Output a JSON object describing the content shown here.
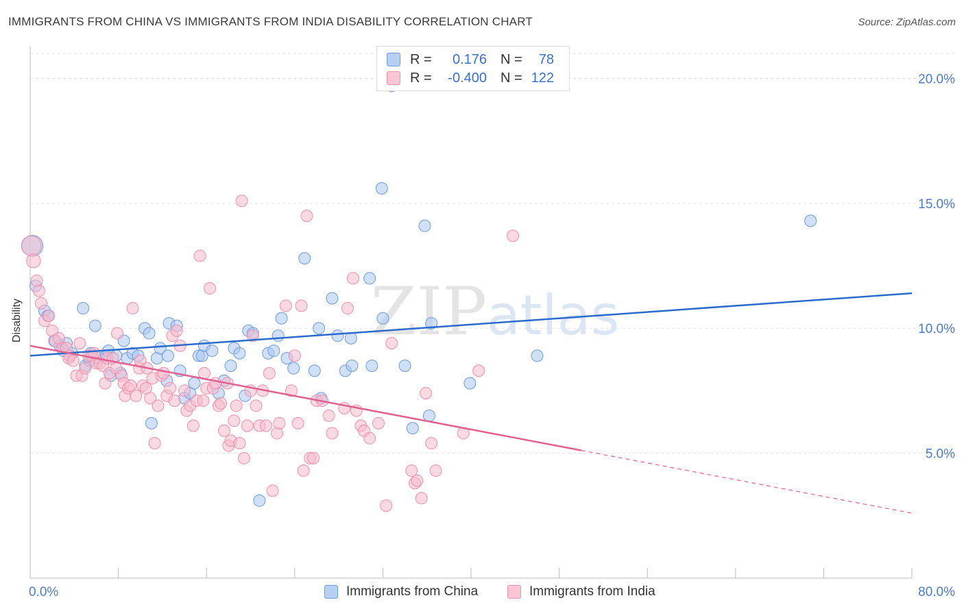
{
  "title": "IMMIGRANTS FROM CHINA VS IMMIGRANTS FROM INDIA DISABILITY CORRELATION CHART",
  "source": "Source: ZipAtlas.com",
  "watermark": "ZIPatlas",
  "legend": {
    "china": {
      "r_label": "R =",
      "r_value": "0.176",
      "n_label": "N =",
      "n_value": "78"
    },
    "india": {
      "r_label": "R =",
      "r_value": "-0.400",
      "n_label": "N =",
      "n_value": "122"
    }
  },
  "colors": {
    "china_fill": "#a7c6f0",
    "china_stroke": "#6d9be0",
    "china_line": "#2a6ccc",
    "india_fill": "#f7b9cc",
    "india_stroke": "#ee8fae",
    "india_line": "#e0608f",
    "tick_label": "#4a7bd0",
    "grid": "#e3e3e3"
  },
  "chart_data": {
    "type": "scatter",
    "xlabel": "",
    "ylabel": "Disability",
    "xlim": [
      0,
      80
    ],
    "ylim": [
      0,
      21
    ],
    "x_tick_labels": [
      "0.0%",
      "80.0%"
    ],
    "y_ticks": [
      5,
      10,
      15,
      20
    ],
    "y_tick_labels": [
      "5.0%",
      "10.0%",
      "15.0%",
      "20.0%"
    ],
    "grid": true,
    "series": [
      {
        "name": "Immigrants from China",
        "trend": {
          "x": [
            0,
            80
          ],
          "y": [
            8.9,
            11.4
          ],
          "dashed_from": null
        },
        "points": [
          [
            0.2,
            13.3,
            1.8
          ],
          [
            0.5,
            11.7,
            1
          ],
          [
            1.3,
            10.7,
            1
          ],
          [
            1.6,
            10.5,
            1
          ],
          [
            2.2,
            9.5,
            1
          ],
          [
            2.7,
            9.3,
            1
          ],
          [
            3.0,
            9.1,
            1
          ],
          [
            3.3,
            9.4,
            1
          ],
          [
            3.8,
            9.0,
            1
          ],
          [
            4.8,
            10.8,
            1
          ],
          [
            5.0,
            8.5,
            1
          ],
          [
            5.4,
            8.7,
            1
          ],
          [
            5.5,
            9.0,
            1
          ],
          [
            5.9,
            10.1,
            1
          ],
          [
            6.2,
            8.8,
            1
          ],
          [
            6.9,
            8.9,
            1
          ],
          [
            7.1,
            9.1,
            1
          ],
          [
            7.3,
            8.1,
            1
          ],
          [
            7.8,
            8.9,
            1
          ],
          [
            8.2,
            8.2,
            1
          ],
          [
            8.5,
            9.5,
            1
          ],
          [
            8.8,
            8.8,
            1
          ],
          [
            9.3,
            9.0,
            1
          ],
          [
            9.8,
            8.9,
            1
          ],
          [
            10.4,
            10.0,
            1
          ],
          [
            10.8,
            9.8,
            1
          ],
          [
            11.0,
            6.2,
            1
          ],
          [
            11.5,
            8.8,
            1
          ],
          [
            11.8,
            9.2,
            1
          ],
          [
            12.5,
            8.9,
            1
          ],
          [
            12.4,
            7.9,
            1
          ],
          [
            12.6,
            10.2,
            1
          ],
          [
            13.3,
            10.1,
            1
          ],
          [
            13.6,
            8.3,
            1
          ],
          [
            14.0,
            7.2,
            1
          ],
          [
            14.5,
            7.4,
            1
          ],
          [
            14.9,
            7.8,
            1
          ],
          [
            15.3,
            8.9,
            1
          ],
          [
            15.6,
            8.9,
            1
          ],
          [
            15.8,
            9.3,
            1
          ],
          [
            16.5,
            9.1,
            1
          ],
          [
            17.1,
            7.4,
            1
          ],
          [
            17.6,
            7.9,
            1
          ],
          [
            18.2,
            8.5,
            1
          ],
          [
            18.5,
            9.2,
            1
          ],
          [
            19.0,
            9.0,
            1
          ],
          [
            19.5,
            7.3,
            1
          ],
          [
            19.8,
            9.9,
            1
          ],
          [
            20.2,
            9.8,
            1
          ],
          [
            20.8,
            3.1,
            1
          ],
          [
            21.6,
            9.0,
            1
          ],
          [
            22.1,
            9.1,
            1
          ],
          [
            22.5,
            9.7,
            1
          ],
          [
            22.8,
            10.4,
            1
          ],
          [
            23.3,
            8.8,
            1
          ],
          [
            23.9,
            8.4,
            1
          ],
          [
            24.9,
            12.8,
            1
          ],
          [
            25.8,
            8.3,
            1
          ],
          [
            26.2,
            10.0,
            1
          ],
          [
            26.4,
            7.2,
            1
          ],
          [
            27.4,
            11.2,
            1
          ],
          [
            27.9,
            9.7,
            1
          ],
          [
            28.6,
            8.3,
            1
          ],
          [
            29.1,
            9.6,
            1
          ],
          [
            29.2,
            8.5,
            1
          ],
          [
            30.8,
            12.0,
            1
          ],
          [
            31.0,
            8.5,
            1
          ],
          [
            31.9,
            15.6,
            1
          ],
          [
            32.0,
            10.4,
            1
          ],
          [
            32.8,
            19.7,
            1
          ],
          [
            34.0,
            8.5,
            1
          ],
          [
            34.7,
            6.0,
            1
          ],
          [
            35.8,
            14.1,
            1
          ],
          [
            36.2,
            6.5,
            1
          ],
          [
            36.4,
            10.2,
            1
          ],
          [
            39.9,
            7.8,
            1
          ],
          [
            46.0,
            8.9,
            1
          ],
          [
            70.8,
            14.3,
            1
          ]
        ]
      },
      {
        "name": "Immigrants from India",
        "trend": {
          "x": [
            0,
            80
          ],
          "y": [
            9.3,
            2.6
          ],
          "dashed_from": 50
        },
        "points": [
          [
            0.1,
            13.3,
            1.7
          ],
          [
            0.3,
            12.7,
            1.2
          ],
          [
            0.6,
            11.9,
            1
          ],
          [
            0.8,
            11.5,
            1
          ],
          [
            1.0,
            11.0,
            1
          ],
          [
            1.3,
            10.3,
            1
          ],
          [
            1.7,
            10.5,
            1
          ],
          [
            2.0,
            9.9,
            1
          ],
          [
            2.3,
            9.5,
            1
          ],
          [
            2.6,
            9.6,
            1
          ],
          [
            2.9,
            9.2,
            1
          ],
          [
            3.3,
            9.2,
            1
          ],
          [
            3.5,
            8.8,
            1
          ],
          [
            3.6,
            8.9,
            1
          ],
          [
            3.9,
            8.7,
            1
          ],
          [
            4.2,
            8.1,
            1
          ],
          [
            4.5,
            9.4,
            1
          ],
          [
            4.7,
            8.1,
            1
          ],
          [
            5.0,
            8.4,
            1
          ],
          [
            5.3,
            8.9,
            1
          ],
          [
            5.6,
            8.9,
            1
          ],
          [
            5.8,
            9.0,
            1
          ],
          [
            6.0,
            8.6,
            1
          ],
          [
            6.3,
            8.6,
            1
          ],
          [
            6.6,
            8.5,
            1
          ],
          [
            6.8,
            7.8,
            1
          ],
          [
            7.0,
            8.8,
            1
          ],
          [
            7.2,
            8.2,
            1
          ],
          [
            7.5,
            8.8,
            1
          ],
          [
            7.8,
            8.4,
            1
          ],
          [
            7.9,
            9.8,
            1
          ],
          [
            8.3,
            8.1,
            1
          ],
          [
            8.5,
            7.8,
            1
          ],
          [
            8.6,
            7.3,
            1
          ],
          [
            8.9,
            7.6,
            1
          ],
          [
            9.1,
            7.7,
            1
          ],
          [
            9.3,
            10.8,
            1
          ],
          [
            9.6,
            7.3,
            1
          ],
          [
            9.9,
            8.4,
            1
          ],
          [
            10.0,
            8.7,
            1
          ],
          [
            10.2,
            7.7,
            1
          ],
          [
            10.5,
            7.6,
            1
          ],
          [
            10.6,
            8.4,
            1
          ],
          [
            10.9,
            7.2,
            1
          ],
          [
            11.1,
            8.0,
            1
          ],
          [
            11.3,
            5.4,
            1
          ],
          [
            11.6,
            6.9,
            1
          ],
          [
            11.9,
            8.1,
            1
          ],
          [
            12.1,
            8.2,
            1
          ],
          [
            12.4,
            7.3,
            1
          ],
          [
            12.7,
            7.6,
            1
          ],
          [
            12.9,
            9.7,
            1
          ],
          [
            13.1,
            7.1,
            1
          ],
          [
            13.3,
            9.9,
            1
          ],
          [
            13.6,
            9.3,
            1
          ],
          [
            14.0,
            7.5,
            1
          ],
          [
            14.2,
            6.7,
            1
          ],
          [
            14.5,
            6.9,
            1
          ],
          [
            14.8,
            6.1,
            1
          ],
          [
            15.1,
            7.1,
            1
          ],
          [
            15.4,
            12.9,
            1
          ],
          [
            15.7,
            7.1,
            1
          ],
          [
            15.8,
            8.2,
            1
          ],
          [
            16.0,
            7.6,
            1
          ],
          [
            16.3,
            11.6,
            1
          ],
          [
            16.6,
            7.6,
            1
          ],
          [
            16.8,
            7.8,
            1
          ],
          [
            17.1,
            6.9,
            1
          ],
          [
            17.3,
            7.0,
            1
          ],
          [
            17.6,
            5.9,
            1
          ],
          [
            17.9,
            7.8,
            1
          ],
          [
            18.0,
            5.3,
            1
          ],
          [
            18.2,
            5.5,
            1
          ],
          [
            18.5,
            6.3,
            1
          ],
          [
            18.7,
            6.9,
            1
          ],
          [
            19.0,
            5.4,
            1
          ],
          [
            19.2,
            15.1,
            1
          ],
          [
            19.4,
            4.8,
            1
          ],
          [
            19.7,
            6.1,
            1
          ],
          [
            20.0,
            7.5,
            1
          ],
          [
            20.2,
            9.7,
            1
          ],
          [
            20.5,
            6.9,
            1
          ],
          [
            20.8,
            6.1,
            1
          ],
          [
            21.1,
            7.5,
            1
          ],
          [
            21.4,
            6.1,
            1
          ],
          [
            21.7,
            8.2,
            1
          ],
          [
            22.0,
            3.5,
            1
          ],
          [
            22.4,
            5.8,
            1
          ],
          [
            22.6,
            6.2,
            1
          ],
          [
            23.2,
            10.9,
            1
          ],
          [
            23.7,
            7.5,
            1
          ],
          [
            24.0,
            8.9,
            1
          ],
          [
            24.3,
            6.2,
            1
          ],
          [
            24.6,
            10.9,
            1
          ],
          [
            24.8,
            4.3,
            1
          ],
          [
            25.1,
            14.5,
            1
          ],
          [
            25.4,
            4.8,
            1
          ],
          [
            25.7,
            4.8,
            1
          ],
          [
            26.0,
            7.1,
            1
          ],
          [
            26.5,
            7.1,
            1
          ],
          [
            27.1,
            6.5,
            1
          ],
          [
            27.4,
            5.8,
            1
          ],
          [
            28.5,
            6.8,
            1
          ],
          [
            28.8,
            10.8,
            1
          ],
          [
            29.3,
            12.0,
            1
          ],
          [
            29.6,
            6.7,
            1
          ],
          [
            30.0,
            6.1,
            1
          ],
          [
            30.3,
            5.9,
            1
          ],
          [
            30.8,
            5.6,
            1
          ],
          [
            31.6,
            6.2,
            1
          ],
          [
            32.3,
            2.9,
            1
          ],
          [
            32.8,
            9.4,
            1
          ],
          [
            34.6,
            4.3,
            1
          ],
          [
            34.9,
            3.8,
            1
          ],
          [
            35.1,
            3.9,
            1
          ],
          [
            35.5,
            3.2,
            1
          ],
          [
            35.9,
            7.4,
            1
          ],
          [
            36.4,
            5.4,
            1
          ],
          [
            36.8,
            4.3,
            1
          ],
          [
            39.3,
            5.8,
            1
          ],
          [
            40.7,
            8.3,
            1
          ],
          [
            43.8,
            13.7,
            1
          ]
        ]
      }
    ]
  },
  "bottom_legend": [
    {
      "label": "Immigrants from China"
    },
    {
      "label": "Immigrants from India"
    }
  ]
}
